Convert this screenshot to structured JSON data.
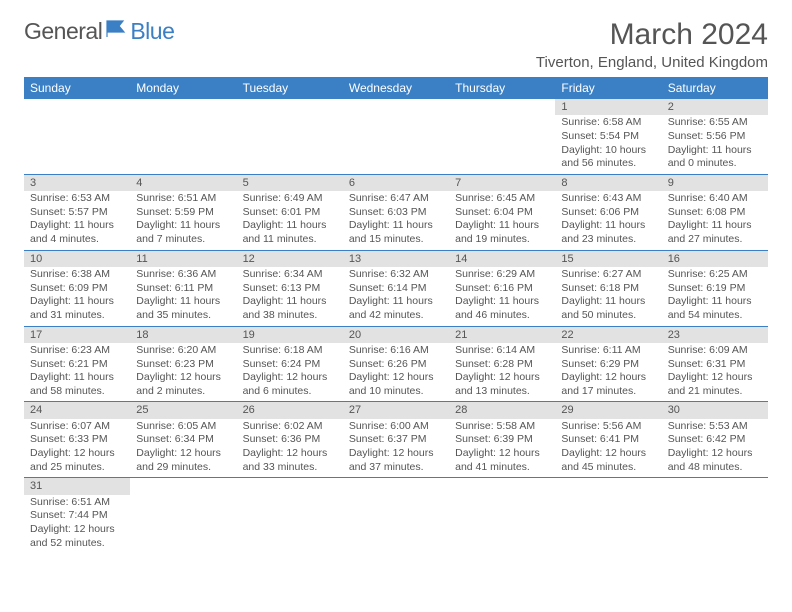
{
  "brand": {
    "part1": "General",
    "part2": "Blue"
  },
  "title": "March 2024",
  "location": "Tiverton, England, United Kingdom",
  "colors": {
    "header_bg": "#3b7fc4",
    "header_fg": "#ffffff",
    "daynum_bg": "#e2e2e2",
    "text": "#555555",
    "rule": "#3b7fc4"
  },
  "font": {
    "family": "Arial",
    "title_size": 30,
    "location_size": 15,
    "th_size": 12,
    "cell_size": 10.5
  },
  "weekdays": [
    "Sunday",
    "Monday",
    "Tuesday",
    "Wednesday",
    "Thursday",
    "Friday",
    "Saturday"
  ],
  "weeks": [
    [
      null,
      null,
      null,
      null,
      null,
      {
        "n": "1",
        "sr": "Sunrise: 6:58 AM",
        "ss": "Sunset: 5:54 PM",
        "dl": "Daylight: 10 hours and 56 minutes."
      },
      {
        "n": "2",
        "sr": "Sunrise: 6:55 AM",
        "ss": "Sunset: 5:56 PM",
        "dl": "Daylight: 11 hours and 0 minutes."
      }
    ],
    [
      {
        "n": "3",
        "sr": "Sunrise: 6:53 AM",
        "ss": "Sunset: 5:57 PM",
        "dl": "Daylight: 11 hours and 4 minutes."
      },
      {
        "n": "4",
        "sr": "Sunrise: 6:51 AM",
        "ss": "Sunset: 5:59 PM",
        "dl": "Daylight: 11 hours and 7 minutes."
      },
      {
        "n": "5",
        "sr": "Sunrise: 6:49 AM",
        "ss": "Sunset: 6:01 PM",
        "dl": "Daylight: 11 hours and 11 minutes."
      },
      {
        "n": "6",
        "sr": "Sunrise: 6:47 AM",
        "ss": "Sunset: 6:03 PM",
        "dl": "Daylight: 11 hours and 15 minutes."
      },
      {
        "n": "7",
        "sr": "Sunrise: 6:45 AM",
        "ss": "Sunset: 6:04 PM",
        "dl": "Daylight: 11 hours and 19 minutes."
      },
      {
        "n": "8",
        "sr": "Sunrise: 6:43 AM",
        "ss": "Sunset: 6:06 PM",
        "dl": "Daylight: 11 hours and 23 minutes."
      },
      {
        "n": "9",
        "sr": "Sunrise: 6:40 AM",
        "ss": "Sunset: 6:08 PM",
        "dl": "Daylight: 11 hours and 27 minutes."
      }
    ],
    [
      {
        "n": "10",
        "sr": "Sunrise: 6:38 AM",
        "ss": "Sunset: 6:09 PM",
        "dl": "Daylight: 11 hours and 31 minutes."
      },
      {
        "n": "11",
        "sr": "Sunrise: 6:36 AM",
        "ss": "Sunset: 6:11 PM",
        "dl": "Daylight: 11 hours and 35 minutes."
      },
      {
        "n": "12",
        "sr": "Sunrise: 6:34 AM",
        "ss": "Sunset: 6:13 PM",
        "dl": "Daylight: 11 hours and 38 minutes."
      },
      {
        "n": "13",
        "sr": "Sunrise: 6:32 AM",
        "ss": "Sunset: 6:14 PM",
        "dl": "Daylight: 11 hours and 42 minutes."
      },
      {
        "n": "14",
        "sr": "Sunrise: 6:29 AM",
        "ss": "Sunset: 6:16 PM",
        "dl": "Daylight: 11 hours and 46 minutes."
      },
      {
        "n": "15",
        "sr": "Sunrise: 6:27 AM",
        "ss": "Sunset: 6:18 PM",
        "dl": "Daylight: 11 hours and 50 minutes."
      },
      {
        "n": "16",
        "sr": "Sunrise: 6:25 AM",
        "ss": "Sunset: 6:19 PM",
        "dl": "Daylight: 11 hours and 54 minutes."
      }
    ],
    [
      {
        "n": "17",
        "sr": "Sunrise: 6:23 AM",
        "ss": "Sunset: 6:21 PM",
        "dl": "Daylight: 11 hours and 58 minutes."
      },
      {
        "n": "18",
        "sr": "Sunrise: 6:20 AM",
        "ss": "Sunset: 6:23 PM",
        "dl": "Daylight: 12 hours and 2 minutes."
      },
      {
        "n": "19",
        "sr": "Sunrise: 6:18 AM",
        "ss": "Sunset: 6:24 PM",
        "dl": "Daylight: 12 hours and 6 minutes."
      },
      {
        "n": "20",
        "sr": "Sunrise: 6:16 AM",
        "ss": "Sunset: 6:26 PM",
        "dl": "Daylight: 12 hours and 10 minutes."
      },
      {
        "n": "21",
        "sr": "Sunrise: 6:14 AM",
        "ss": "Sunset: 6:28 PM",
        "dl": "Daylight: 12 hours and 13 minutes."
      },
      {
        "n": "22",
        "sr": "Sunrise: 6:11 AM",
        "ss": "Sunset: 6:29 PM",
        "dl": "Daylight: 12 hours and 17 minutes."
      },
      {
        "n": "23",
        "sr": "Sunrise: 6:09 AM",
        "ss": "Sunset: 6:31 PM",
        "dl": "Daylight: 12 hours and 21 minutes."
      }
    ],
    [
      {
        "n": "24",
        "sr": "Sunrise: 6:07 AM",
        "ss": "Sunset: 6:33 PM",
        "dl": "Daylight: 12 hours and 25 minutes."
      },
      {
        "n": "25",
        "sr": "Sunrise: 6:05 AM",
        "ss": "Sunset: 6:34 PM",
        "dl": "Daylight: 12 hours and 29 minutes."
      },
      {
        "n": "26",
        "sr": "Sunrise: 6:02 AM",
        "ss": "Sunset: 6:36 PM",
        "dl": "Daylight: 12 hours and 33 minutes."
      },
      {
        "n": "27",
        "sr": "Sunrise: 6:00 AM",
        "ss": "Sunset: 6:37 PM",
        "dl": "Daylight: 12 hours and 37 minutes."
      },
      {
        "n": "28",
        "sr": "Sunrise: 5:58 AM",
        "ss": "Sunset: 6:39 PM",
        "dl": "Daylight: 12 hours and 41 minutes."
      },
      {
        "n": "29",
        "sr": "Sunrise: 5:56 AM",
        "ss": "Sunset: 6:41 PM",
        "dl": "Daylight: 12 hours and 45 minutes."
      },
      {
        "n": "30",
        "sr": "Sunrise: 5:53 AM",
        "ss": "Sunset: 6:42 PM",
        "dl": "Daylight: 12 hours and 48 minutes."
      }
    ],
    [
      {
        "n": "31",
        "sr": "Sunrise: 6:51 AM",
        "ss": "Sunset: 7:44 PM",
        "dl": "Daylight: 12 hours and 52 minutes."
      },
      null,
      null,
      null,
      null,
      null,
      null
    ]
  ]
}
